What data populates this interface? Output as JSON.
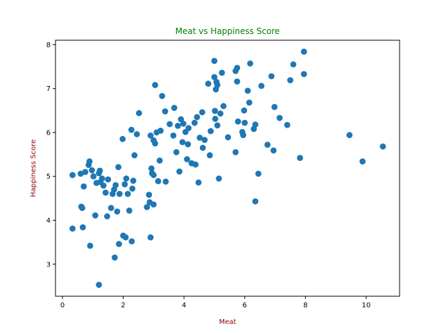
{
  "chart_data": {
    "type": "scatter",
    "title": "Meat vs Happiness Score",
    "xlabel": "Meat",
    "ylabel": "Happiness Score",
    "xlim": [
      -0.23,
      11.1
    ],
    "ylim": [
      2.27,
      8.1
    ],
    "xticks": [
      0,
      2,
      4,
      6,
      8,
      10
    ],
    "yticks": [
      3,
      4,
      5,
      6,
      7,
      8
    ],
    "grid": false,
    "colors": {
      "marker": "#1f77b4",
      "title": "#008000",
      "axis_label": "#8b0000"
    },
    "points": [
      [
        0.33,
        5.03
      ],
      [
        0.33,
        3.81
      ],
      [
        0.6,
        5.06
      ],
      [
        0.62,
        4.31
      ],
      [
        0.65,
        4.28
      ],
      [
        0.67,
        3.84
      ],
      [
        0.7,
        4.77
      ],
      [
        0.75,
        5.1
      ],
      [
        0.86,
        5.26
      ],
      [
        0.89,
        5.34
      ],
      [
        0.91,
        3.42
      ],
      [
        0.97,
        5.14
      ],
      [
        1.02,
        5.0
      ],
      [
        1.08,
        4.11
      ],
      [
        1.12,
        4.85
      ],
      [
        1.2,
        2.53
      ],
      [
        1.2,
        5.07
      ],
      [
        1.23,
        5.13
      ],
      [
        1.25,
        4.87
      ],
      [
        1.3,
        4.95
      ],
      [
        1.35,
        4.79
      ],
      [
        1.42,
        4.63
      ],
      [
        1.47,
        4.09
      ],
      [
        1.5,
        4.93
      ],
      [
        1.6,
        4.28
      ],
      [
        1.65,
        4.6
      ],
      [
        1.7,
        4.7
      ],
      [
        1.72,
        3.15
      ],
      [
        1.75,
        4.8
      ],
      [
        1.8,
        4.2
      ],
      [
        1.84,
        5.21
      ],
      [
        1.86,
        3.46
      ],
      [
        1.88,
        4.6
      ],
      [
        1.98,
        5.85
      ],
      [
        2.0,
        3.65
      ],
      [
        2.08,
        3.61
      ],
      [
        2.05,
        4.82
      ],
      [
        2.1,
        4.95
      ],
      [
        2.15,
        4.6
      ],
      [
        2.2,
        4.22
      ],
      [
        2.27,
        6.06
      ],
      [
        2.28,
        3.52
      ],
      [
        2.3,
        4.72
      ],
      [
        2.33,
        4.9
      ],
      [
        2.37,
        5.48
      ],
      [
        2.45,
        5.96
      ],
      [
        2.52,
        6.44
      ],
      [
        2.78,
        4.3
      ],
      [
        2.85,
        4.58
      ],
      [
        2.87,
        4.41
      ],
      [
        2.9,
        3.61
      ],
      [
        2.9,
        5.93
      ],
      [
        2.93,
        5.18
      ],
      [
        2.95,
        5.07
      ],
      [
        3.0,
        5.03
      ],
      [
        3.0,
        4.36
      ],
      [
        3.0,
        5.82
      ],
      [
        3.05,
        7.08
      ],
      [
        3.05,
        5.75
      ],
      [
        3.1,
        6.0
      ],
      [
        3.15,
        4.89
      ],
      [
        3.2,
        5.36
      ],
      [
        3.23,
        6.04
      ],
      [
        3.28,
        6.83
      ],
      [
        3.38,
        6.48
      ],
      [
        3.4,
        4.88
      ],
      [
        3.53,
        6.19
      ],
      [
        3.65,
        5.93
      ],
      [
        3.68,
        6.56
      ],
      [
        3.75,
        5.55
      ],
      [
        3.8,
        6.15
      ],
      [
        3.85,
        5.11
      ],
      [
        3.9,
        6.3
      ],
      [
        3.95,
        5.78
      ],
      [
        3.98,
        6.2
      ],
      [
        4.05,
        6.01
      ],
      [
        4.1,
        5.39
      ],
      [
        4.13,
        5.73
      ],
      [
        4.15,
        6.1
      ],
      [
        4.25,
        5.3
      ],
      [
        4.35,
        6.22
      ],
      [
        4.38,
        5.27
      ],
      [
        4.43,
        6.35
      ],
      [
        4.48,
        4.86
      ],
      [
        4.52,
        5.88
      ],
      [
        4.6,
        6.46
      ],
      [
        4.62,
        5.65
      ],
      [
        4.68,
        5.83
      ],
      [
        4.8,
        7.11
      ],
      [
        4.85,
        5.48
      ],
      [
        4.88,
        6.03
      ],
      [
        5.0,
        7.63
      ],
      [
        5.0,
        7.26
      ],
      [
        5.02,
        6.49
      ],
      [
        5.03,
        6.31
      ],
      [
        5.05,
        6.98
      ],
      [
        5.07,
        7.15
      ],
      [
        5.1,
        7.08
      ],
      [
        5.1,
        6.16
      ],
      [
        5.15,
        4.95
      ],
      [
        5.2,
        6.43
      ],
      [
        5.25,
        7.36
      ],
      [
        5.3,
        6.6
      ],
      [
        5.45,
        5.89
      ],
      [
        5.7,
        7.4
      ],
      [
        5.7,
        5.55
      ],
      [
        5.75,
        7.47
      ],
      [
        5.75,
        7.16
      ],
      [
        5.78,
        6.25
      ],
      [
        5.92,
        6.01
      ],
      [
        5.95,
        5.94
      ],
      [
        5.98,
        6.5
      ],
      [
        6.0,
        6.22
      ],
      [
        6.1,
        6.95
      ],
      [
        6.15,
        6.68
      ],
      [
        6.18,
        7.57
      ],
      [
        6.3,
        6.08
      ],
      [
        6.35,
        6.18
      ],
      [
        6.35,
        4.43
      ],
      [
        6.45,
        5.06
      ],
      [
        6.55,
        7.06
      ],
      [
        6.75,
        5.72
      ],
      [
        6.88,
        7.28
      ],
      [
        6.95,
        5.59
      ],
      [
        6.98,
        6.58
      ],
      [
        7.15,
        6.33
      ],
      [
        7.4,
        6.17
      ],
      [
        7.5,
        7.19
      ],
      [
        7.6,
        7.55
      ],
      [
        7.82,
        5.42
      ],
      [
        7.95,
        7.33
      ],
      [
        7.95,
        7.84
      ],
      [
        9.45,
        5.94
      ],
      [
        9.88,
        5.34
      ],
      [
        10.55,
        5.68
      ]
    ]
  }
}
